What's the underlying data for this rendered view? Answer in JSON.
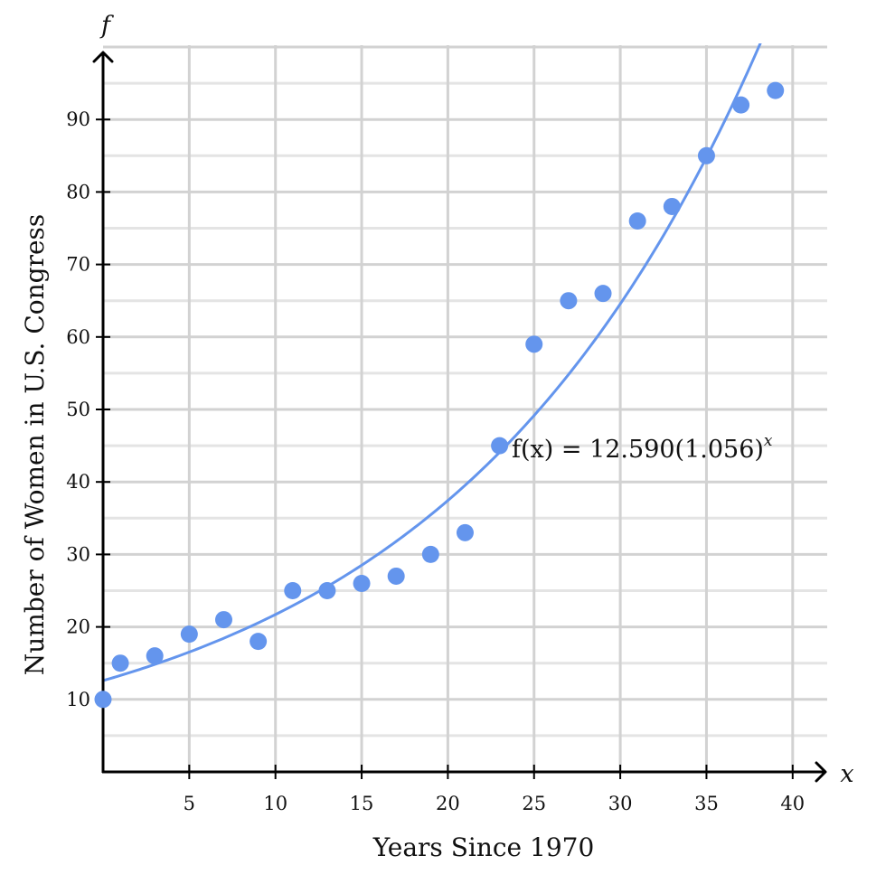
{
  "chart_data": {
    "type": "scatter",
    "title": "",
    "xlabel": "Years Since 1970",
    "ylabel": "Number of Women in U.S. Congress",
    "x_axis_variable": "x",
    "y_axis_variable": "f",
    "xlim": [
      0,
      42
    ],
    "ylim": [
      0,
      100
    ],
    "x_ticks": [
      5,
      10,
      15,
      20,
      25,
      30,
      35,
      40
    ],
    "y_ticks": [
      10,
      20,
      30,
      40,
      50,
      60,
      70,
      80,
      90
    ],
    "x_minor_grid_step": 5,
    "y_minor_grid_step": 5,
    "grid": true,
    "point_color": "#6495ed",
    "curve_color": "#6495ed",
    "series": [
      {
        "type": "scatter",
        "x": [
          0,
          1,
          3,
          5,
          7,
          9,
          11,
          13,
          15,
          17,
          19,
          21,
          23,
          25,
          27,
          29,
          31,
          33,
          35,
          37,
          39
        ],
        "y": [
          10,
          15,
          16,
          19,
          21,
          18,
          25,
          25,
          26,
          27,
          30,
          33,
          45,
          59,
          65,
          66,
          76,
          78,
          85,
          92,
          94
        ]
      },
      {
        "type": "exponential_fit",
        "a": 12.59,
        "b": 1.056,
        "x_range": [
          0,
          42
        ]
      }
    ],
    "annotations": [
      {
        "text": "f(x) = 12.590(1.056)",
        "superscript": "x"
      }
    ]
  }
}
